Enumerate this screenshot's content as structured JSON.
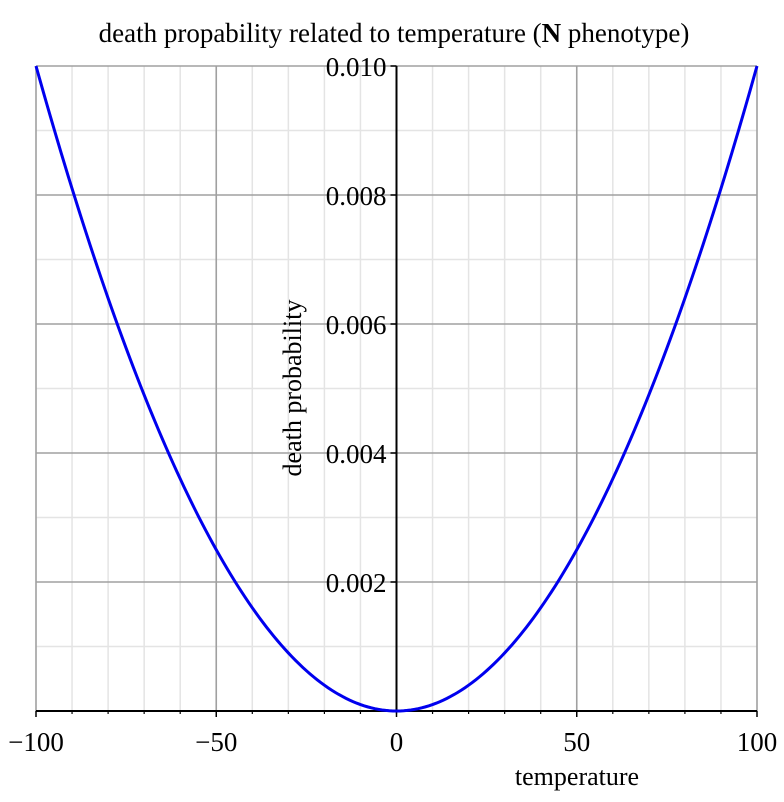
{
  "chart_data": {
    "type": "line",
    "title": {
      "before": "death propability related to temperature (",
      "bold": "N",
      "after": " phenotype)"
    },
    "xlabel": "temperature",
    "ylabel": "death probability",
    "xlim": [
      -100,
      100
    ],
    "ylim": [
      0,
      0.01
    ],
    "x_ticks": [
      -100,
      -50,
      0,
      50,
      100
    ],
    "x_tick_labels": [
      "−100",
      "−50",
      "0",
      "50",
      "100"
    ],
    "y_ticks": [
      0.002,
      0.004,
      0.006,
      0.008,
      0.01
    ],
    "y_tick_labels": [
      "0.002",
      "0.004",
      "0.006",
      "0.008",
      "0.010"
    ],
    "grid": true,
    "series": [
      {
        "color": "#0000ee",
        "formula": "y = 0.01 * (x/100)^2",
        "x": [
          -100,
          -90,
          -80,
          -70,
          -60,
          -50,
          -40,
          -30,
          -20,
          -10,
          0,
          10,
          20,
          30,
          40,
          50,
          60,
          70,
          80,
          90,
          100
        ],
        "y": [
          0.01,
          0.0081,
          0.0064,
          0.0049,
          0.0036,
          0.0025,
          0.0016,
          0.0009,
          0.0004,
          0.0001,
          0,
          0.0001,
          0.0004,
          0.0009,
          0.0016,
          0.0025,
          0.0036,
          0.0049,
          0.0064,
          0.0081,
          0.01
        ]
      }
    ],
    "colors": {
      "major_grid": "#a0a0a0",
      "minor_grid": "#e4e4e4",
      "axis": "#000000",
      "curve": "#0000ee"
    }
  }
}
